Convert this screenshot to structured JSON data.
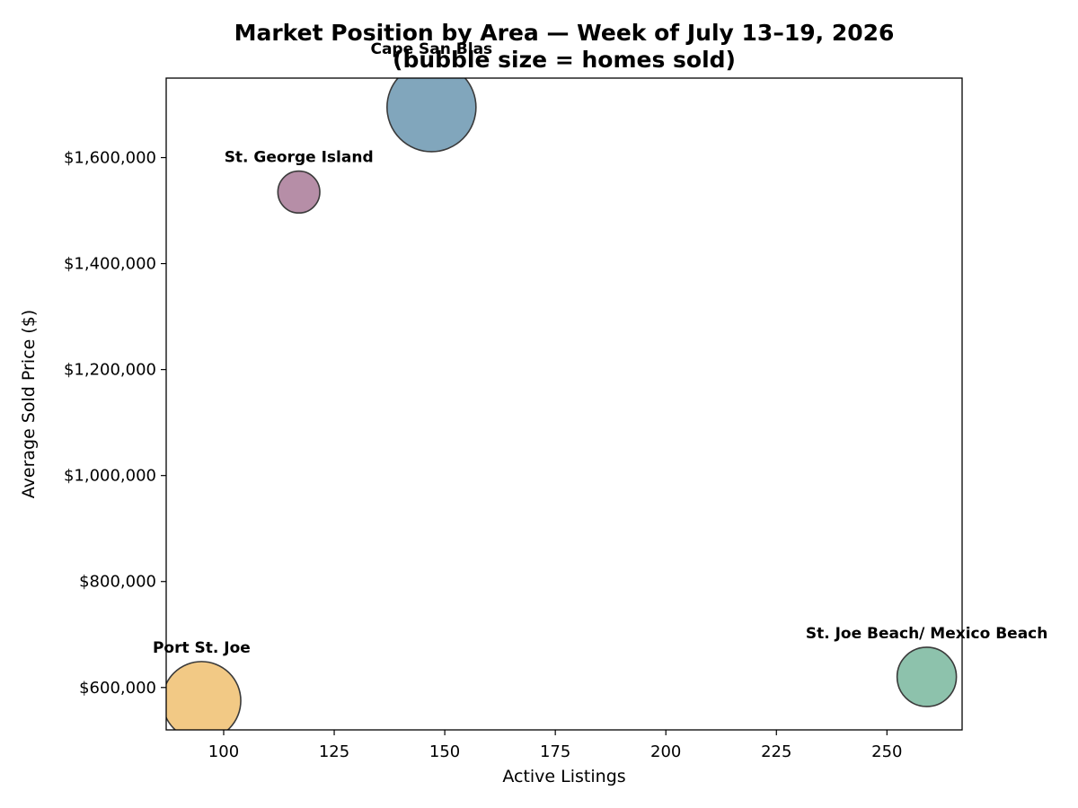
{
  "chart_data": {
    "type": "scatter",
    "title_line1": "Market Position by Area — Week of July 13–19, 2026",
    "title_line2": "(bubble size = homes sold)",
    "xlabel": "Active Listings",
    "ylabel": "Average Sold Price ($)",
    "xlim": [
      87,
      267
    ],
    "ylim": [
      520000,
      1750000
    ],
    "x_ticks": [
      100,
      125,
      150,
      175,
      200,
      225,
      250
    ],
    "x_tick_labels": [
      "100",
      "125",
      "150",
      "175",
      "200",
      "225",
      "250"
    ],
    "y_ticks": [
      600000,
      800000,
      1000000,
      1200000,
      1400000,
      1600000
    ],
    "y_tick_labels": [
      "$600,000",
      "$800,000",
      "$1,000,000",
      "$1,200,000",
      "$1,400,000",
      "$1,600,000"
    ],
    "grid": false,
    "points": [
      {
        "label": "Cape San Blas",
        "x": 147,
        "y": 1695000,
        "size": 9,
        "color": "#6b97b0"
      },
      {
        "label": "St. George Island",
        "x": 117,
        "y": 1535000,
        "size": 2,
        "color": "#a97a98"
      },
      {
        "label": "St. Joe Beach/ Mexico Beach",
        "x": 259,
        "y": 620000,
        "size": 4,
        "color": "#79b79e"
      },
      {
        "label": "Port St. Joe",
        "x": 95,
        "y": 575000,
        "size": 7,
        "color": "#f0c070"
      }
    ]
  }
}
